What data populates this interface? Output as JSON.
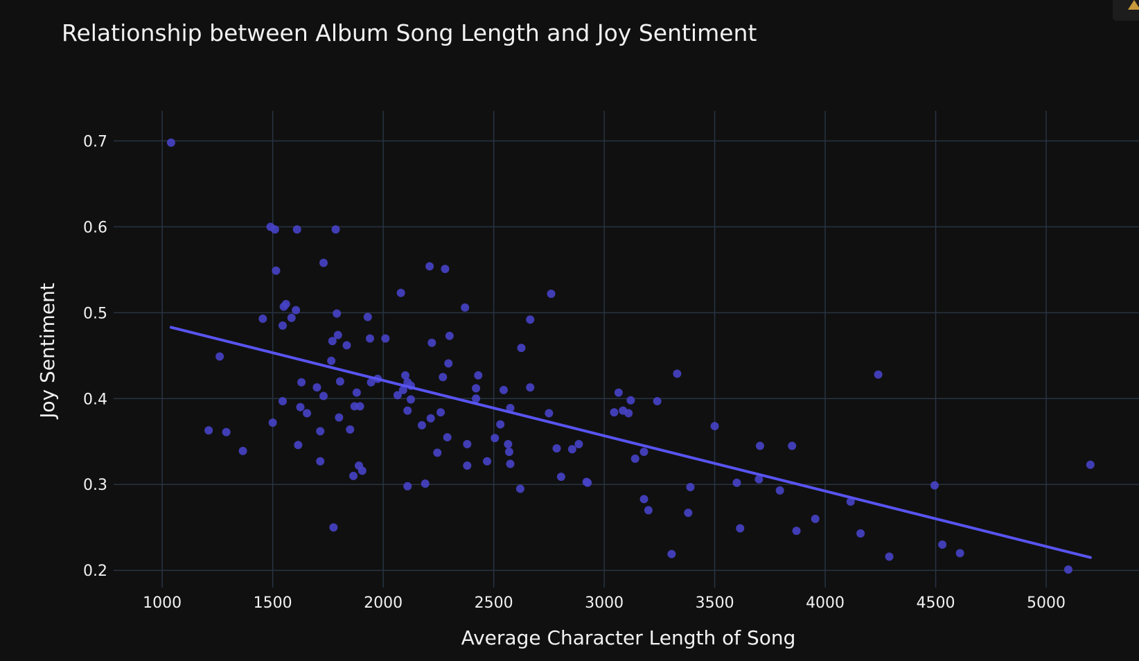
{
  "chart_data": {
    "type": "scatter",
    "title": "Relationship between Album Song Length and Joy Sentiment",
    "xlabel": "Average Character Length of Song",
    "ylabel": "Joy Sentiment",
    "xlim": [
      780,
      5420
    ],
    "ylim": [
      0.18,
      0.735
    ],
    "xticks": [
      1000,
      1500,
      2000,
      2500,
      3000,
      3500,
      4000,
      4500,
      5000
    ],
    "yticks": [
      0.2,
      0.3,
      0.4,
      0.5,
      0.6,
      0.7
    ],
    "grid": true,
    "legend": "none",
    "colors": {
      "background": "#101010",
      "grid": "#283442",
      "points": "#4742c8",
      "trendline": "#5954f0",
      "text": "#f2f2f2"
    },
    "trendline": {
      "x": [
        1040,
        5200
      ],
      "y": [
        0.483,
        0.215
      ]
    },
    "points": [
      [
        1040,
        0.698
      ],
      [
        1210,
        0.363
      ],
      [
        1260,
        0.449
      ],
      [
        1290,
        0.361
      ],
      [
        1365,
        0.339
      ],
      [
        1455,
        0.493
      ],
      [
        1490,
        0.6
      ],
      [
        1500,
        0.372
      ],
      [
        1510,
        0.597
      ],
      [
        1515,
        0.549
      ],
      [
        1545,
        0.397
      ],
      [
        1545,
        0.485
      ],
      [
        1550,
        0.507
      ],
      [
        1560,
        0.51
      ],
      [
        1585,
        0.494
      ],
      [
        1605,
        0.503
      ],
      [
        1610,
        0.597
      ],
      [
        1615,
        0.346
      ],
      [
        1625,
        0.39
      ],
      [
        1630,
        0.419
      ],
      [
        1655,
        0.383
      ],
      [
        1700,
        0.413
      ],
      [
        1715,
        0.327
      ],
      [
        1715,
        0.362
      ],
      [
        1730,
        0.403
      ],
      [
        1730,
        0.558
      ],
      [
        1765,
        0.444
      ],
      [
        1770,
        0.467
      ],
      [
        1775,
        0.25
      ],
      [
        1785,
        0.597
      ],
      [
        1790,
        0.499
      ],
      [
        1795,
        0.474
      ],
      [
        1800,
        0.378
      ],
      [
        1805,
        0.42
      ],
      [
        1835,
        0.462
      ],
      [
        1850,
        0.364
      ],
      [
        1865,
        0.31
      ],
      [
        1870,
        0.391
      ],
      [
        1880,
        0.407
      ],
      [
        1890,
        0.322
      ],
      [
        1895,
        0.391
      ],
      [
        1905,
        0.316
      ],
      [
        1930,
        0.495
      ],
      [
        1940,
        0.47
      ],
      [
        1945,
        0.419
      ],
      [
        1975,
        0.423
      ],
      [
        2010,
        0.47
      ],
      [
        2065,
        0.404
      ],
      [
        2080,
        0.523
      ],
      [
        2090,
        0.41
      ],
      [
        2100,
        0.427
      ],
      [
        2110,
        0.386
      ],
      [
        2110,
        0.419
      ],
      [
        2110,
        0.298
      ],
      [
        2125,
        0.415
      ],
      [
        2125,
        0.399
      ],
      [
        2175,
        0.369
      ],
      [
        2190,
        0.301
      ],
      [
        2210,
        0.554
      ],
      [
        2215,
        0.377
      ],
      [
        2220,
        0.465
      ],
      [
        2245,
        0.337
      ],
      [
        2260,
        0.384
      ],
      [
        2270,
        0.425
      ],
      [
        2280,
        0.551
      ],
      [
        2290,
        0.355
      ],
      [
        2295,
        0.441
      ],
      [
        2300,
        0.473
      ],
      [
        2370,
        0.506
      ],
      [
        2380,
        0.347
      ],
      [
        2380,
        0.322
      ],
      [
        2420,
        0.412
      ],
      [
        2420,
        0.4
      ],
      [
        2430,
        0.427
      ],
      [
        2470,
        0.327
      ],
      [
        2505,
        0.354
      ],
      [
        2530,
        0.37
      ],
      [
        2545,
        0.41
      ],
      [
        2565,
        0.347
      ],
      [
        2570,
        0.338
      ],
      [
        2575,
        0.324
      ],
      [
        2575,
        0.389
      ],
      [
        2620,
        0.295
      ],
      [
        2625,
        0.459
      ],
      [
        2665,
        0.492
      ],
      [
        2665,
        0.413
      ],
      [
        2750,
        0.383
      ],
      [
        2760,
        0.522
      ],
      [
        2785,
        0.342
      ],
      [
        2805,
        0.309
      ],
      [
        2855,
        0.341
      ],
      [
        2885,
        0.347
      ],
      [
        2920,
        0.303
      ],
      [
        2925,
        0.302
      ],
      [
        3045,
        0.384
      ],
      [
        3065,
        0.407
      ],
      [
        3085,
        0.386
      ],
      [
        3110,
        0.383
      ],
      [
        3120,
        0.398
      ],
      [
        3140,
        0.33
      ],
      [
        3180,
        0.283
      ],
      [
        3180,
        0.338
      ],
      [
        3200,
        0.27
      ],
      [
        3240,
        0.397
      ],
      [
        3305,
        0.219
      ],
      [
        3330,
        0.429
      ],
      [
        3380,
        0.267
      ],
      [
        3390,
        0.297
      ],
      [
        3500,
        0.368
      ],
      [
        3600,
        0.302
      ],
      [
        3615,
        0.249
      ],
      [
        3700,
        0.306
      ],
      [
        3705,
        0.345
      ],
      [
        3795,
        0.293
      ],
      [
        3850,
        0.345
      ],
      [
        3870,
        0.246
      ],
      [
        3955,
        0.26
      ],
      [
        4115,
        0.28
      ],
      [
        4160,
        0.243
      ],
      [
        4240,
        0.428
      ],
      [
        4290,
        0.216
      ],
      [
        4495,
        0.299
      ],
      [
        4530,
        0.23
      ],
      [
        4610,
        0.22
      ],
      [
        5100,
        0.201
      ],
      [
        5200,
        0.323
      ]
    ]
  }
}
